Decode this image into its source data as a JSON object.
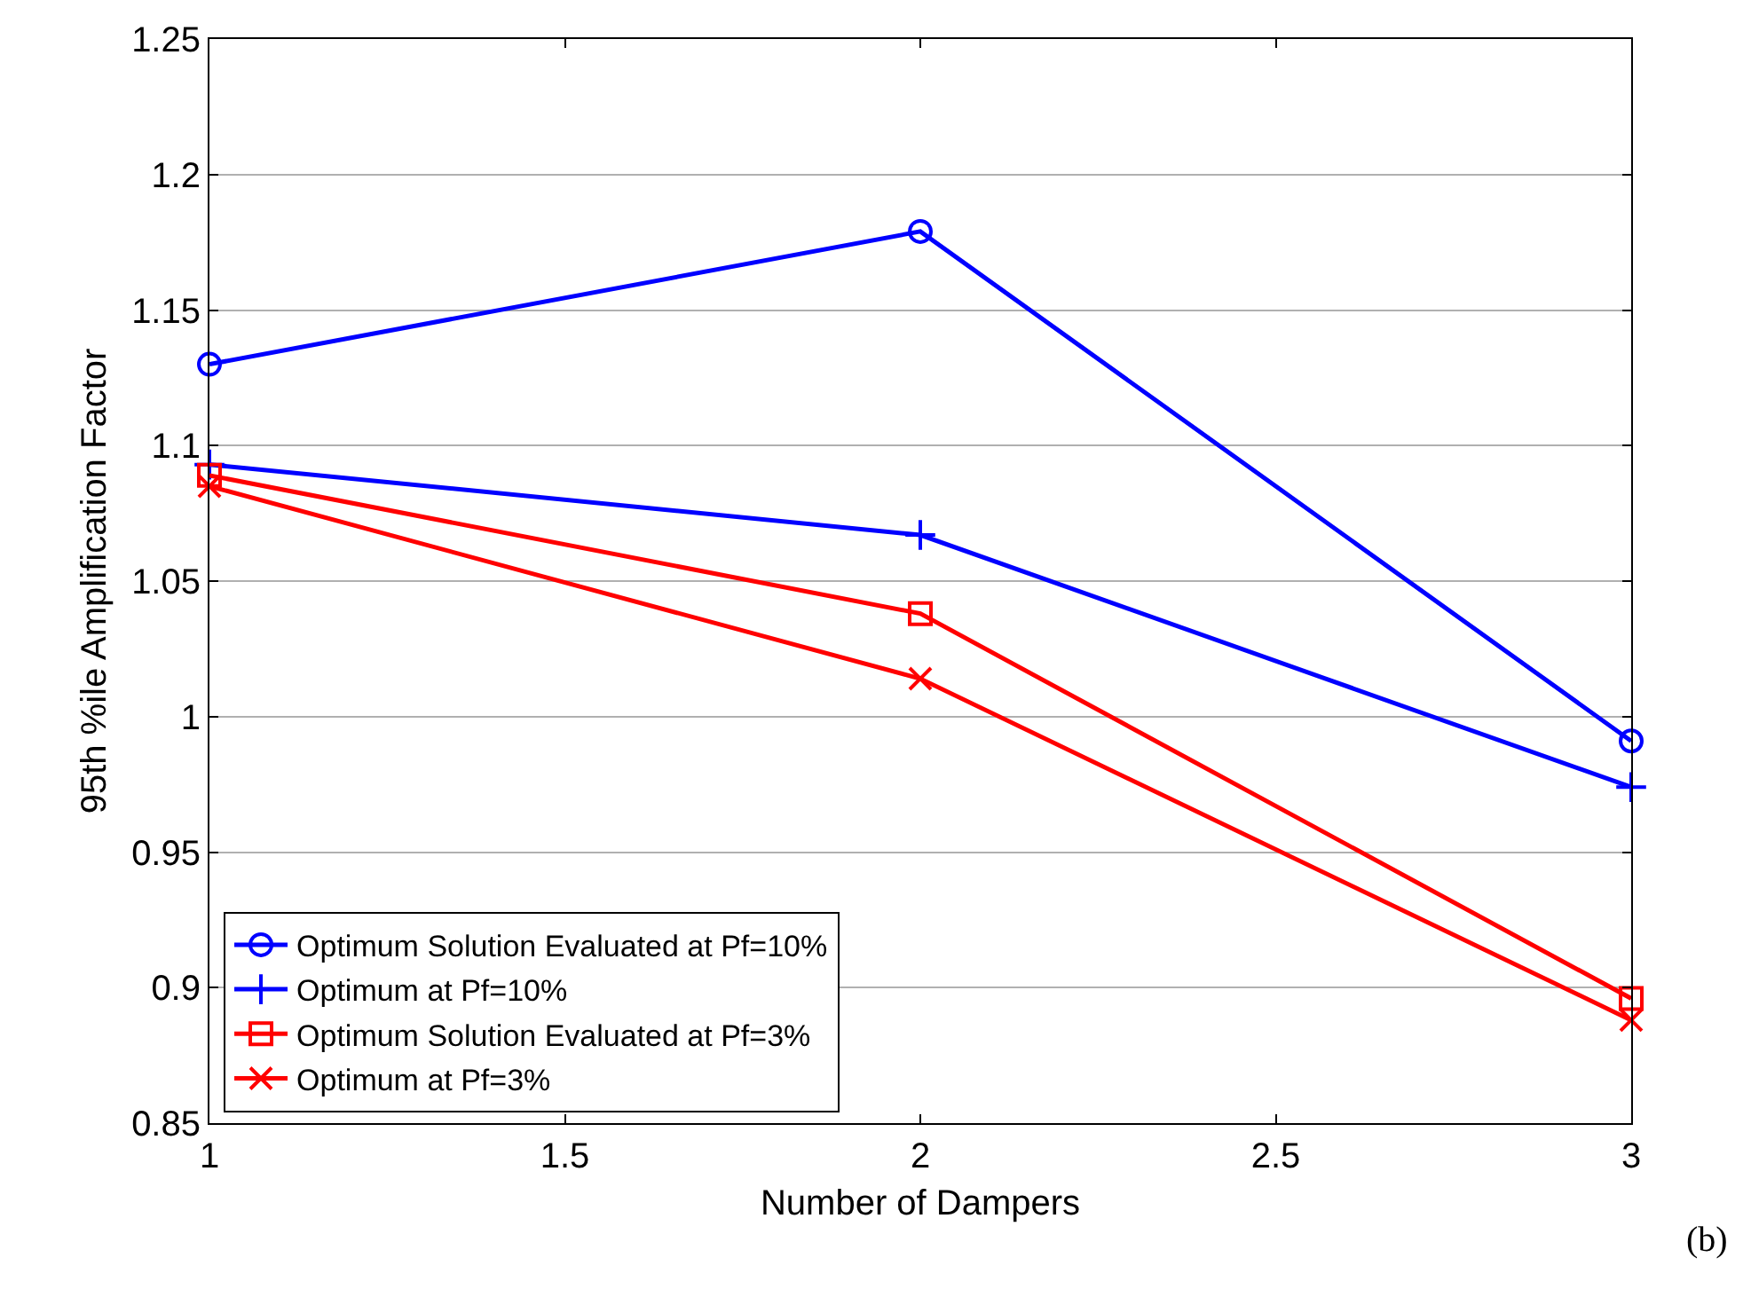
{
  "chart_data": {
    "type": "line",
    "xlabel": "Number of Dampers",
    "ylabel": "95th %ile Amplification Factor",
    "x": [
      1,
      2,
      3
    ],
    "series": [
      {
        "name": "Optimum Solution Evaluated at Pf=10%",
        "color": "#0000ff",
        "marker": "circle",
        "values": [
          1.13,
          1.179,
          0.991
        ]
      },
      {
        "name": "Optimum at Pf=10%",
        "color": "#0000ff",
        "marker": "cross",
        "values": [
          1.093,
          1.067,
          0.974
        ]
      },
      {
        "name": "Optimum Solution Evaluated at Pf=3%",
        "color": "#ff0000",
        "marker": "square",
        "values": [
          1.089,
          1.038,
          0.896
        ]
      },
      {
        "name": "Optimum at Pf=3%",
        "color": "#ff0000",
        "marker": "x",
        "values": [
          1.085,
          1.014,
          0.888
        ]
      }
    ],
    "xlim": [
      1,
      3
    ],
    "xticks": [
      1,
      1.5,
      2,
      2.5,
      3
    ],
    "ylim": [
      0.85,
      1.25
    ],
    "yticks": [
      0.85,
      0.9,
      0.95,
      1,
      1.05,
      1.1,
      1.15,
      1.2,
      1.25
    ],
    "grid": "y",
    "legend": "bottom left",
    "line_style": "solid",
    "annotations": [
      "(b)"
    ]
  }
}
